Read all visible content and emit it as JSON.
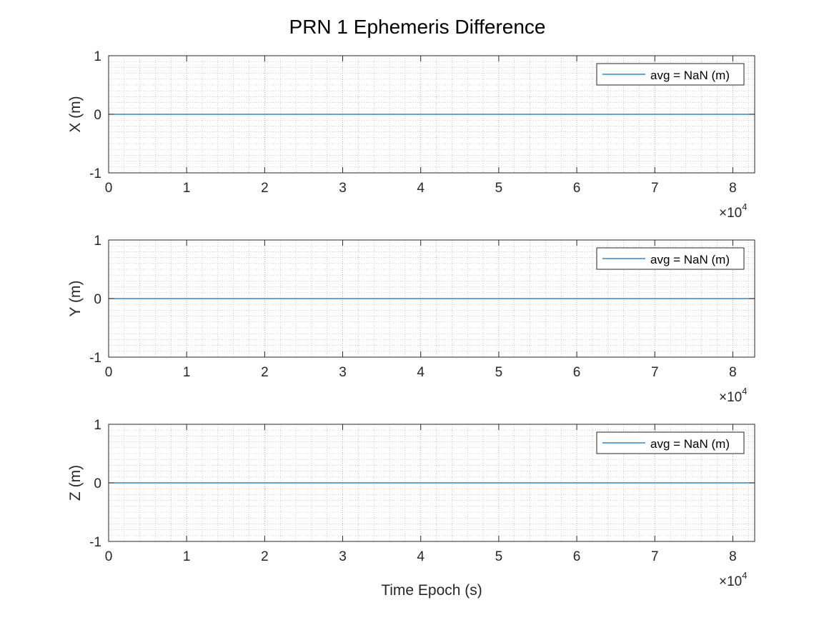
{
  "figure": {
    "title": "PRN 1 Ephemeris Difference"
  },
  "colors": {
    "background": "#ffffff",
    "line": "#0072BD",
    "axis": "#262626",
    "grid": "#b0b0b0"
  },
  "chart_data": [
    {
      "type": "line",
      "ylabel": "X (m)",
      "xlabel": "",
      "xlim": [
        0,
        82800
      ],
      "ylim": [
        -1,
        1
      ],
      "x_exponent_label": "×10",
      "x_exponent": "4",
      "xticks": [
        0,
        1,
        2,
        3,
        4,
        5,
        6,
        7,
        8
      ],
      "yticks": [
        -1,
        0,
        1
      ],
      "grid": true,
      "minor_grid": true,
      "legend_placement": "top-right",
      "series": [
        {
          "name": "avg = NaN (m)",
          "x": [
            0,
            82800
          ],
          "values": [
            0,
            0
          ]
        }
      ]
    },
    {
      "type": "line",
      "ylabel": "Y (m)",
      "xlabel": "",
      "xlim": [
        0,
        82800
      ],
      "ylim": [
        -1,
        1
      ],
      "x_exponent_label": "×10",
      "x_exponent": "4",
      "xticks": [
        0,
        1,
        2,
        3,
        4,
        5,
        6,
        7,
        8
      ],
      "yticks": [
        -1,
        0,
        1
      ],
      "grid": true,
      "minor_grid": true,
      "legend_placement": "top-right",
      "series": [
        {
          "name": "avg = NaN (m)",
          "x": [
            0,
            82800
          ],
          "values": [
            0,
            0
          ]
        }
      ]
    },
    {
      "type": "line",
      "ylabel": "Z (m)",
      "xlabel": "Time Epoch (s)",
      "xlim": [
        0,
        82800
      ],
      "ylim": [
        -1,
        1
      ],
      "x_exponent_label": "×10",
      "x_exponent": "4",
      "xticks": [
        0,
        1,
        2,
        3,
        4,
        5,
        6,
        7,
        8
      ],
      "yticks": [
        -1,
        0,
        1
      ],
      "grid": true,
      "minor_grid": true,
      "legend_placement": "top-right",
      "series": [
        {
          "name": "avg = NaN (m)",
          "x": [
            0,
            82800
          ],
          "values": [
            0,
            0
          ]
        }
      ]
    }
  ]
}
